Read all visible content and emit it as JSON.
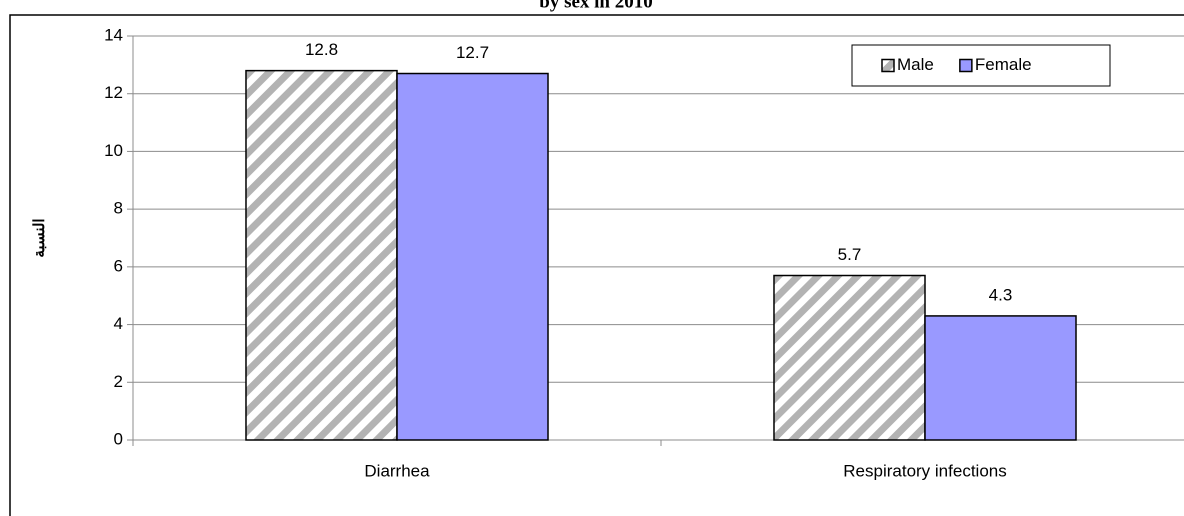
{
  "chart_data": {
    "type": "bar",
    "title": "by sex in 2010",
    "y_label": "النسبة",
    "categories": [
      "Diarrhea",
      "Respiratory infections"
    ],
    "series": [
      {
        "name": "Male",
        "color": "#b3b3b3",
        "hatch": true,
        "values": [
          12.8,
          5.7
        ]
      },
      {
        "name": "Female",
        "color": "#9999ff",
        "hatch": false,
        "values": [
          12.7,
          4.3
        ]
      }
    ],
    "ylim": [
      0,
      14
    ],
    "yticks": [
      0,
      2,
      4,
      6,
      8,
      10,
      12,
      14
    ],
    "grid": true,
    "legend": "top-right"
  }
}
